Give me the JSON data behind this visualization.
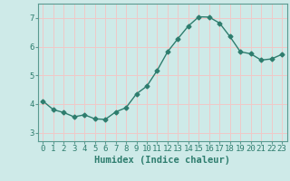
{
  "x": [
    0,
    1,
    2,
    3,
    4,
    5,
    6,
    7,
    8,
    9,
    10,
    11,
    12,
    13,
    14,
    15,
    16,
    17,
    18,
    19,
    20,
    21,
    22,
    23
  ],
  "y": [
    4.1,
    3.8,
    3.7,
    3.55,
    3.62,
    3.48,
    3.46,
    3.72,
    3.87,
    4.35,
    4.62,
    5.17,
    5.82,
    6.28,
    6.72,
    7.04,
    7.03,
    6.82,
    6.35,
    5.82,
    5.75,
    5.53,
    5.57,
    5.73
  ],
  "line_color": "#2e7d6e",
  "marker": "D",
  "markersize": 2.5,
  "linewidth": 1.0,
  "bg_color": "#ceeae8",
  "grid_color": "#f0c8c8",
  "xlabel": "Humidex (Indice chaleur)",
  "xlim": [
    -0.5,
    23.5
  ],
  "ylim": [
    2.7,
    7.5
  ],
  "yticks": [
    3,
    4,
    5,
    6,
    7
  ],
  "xticks": [
    0,
    1,
    2,
    3,
    4,
    5,
    6,
    7,
    8,
    9,
    10,
    11,
    12,
    13,
    14,
    15,
    16,
    17,
    18,
    19,
    20,
    21,
    22,
    23
  ],
  "xlabel_fontsize": 7.5,
  "tick_fontsize": 6.5
}
